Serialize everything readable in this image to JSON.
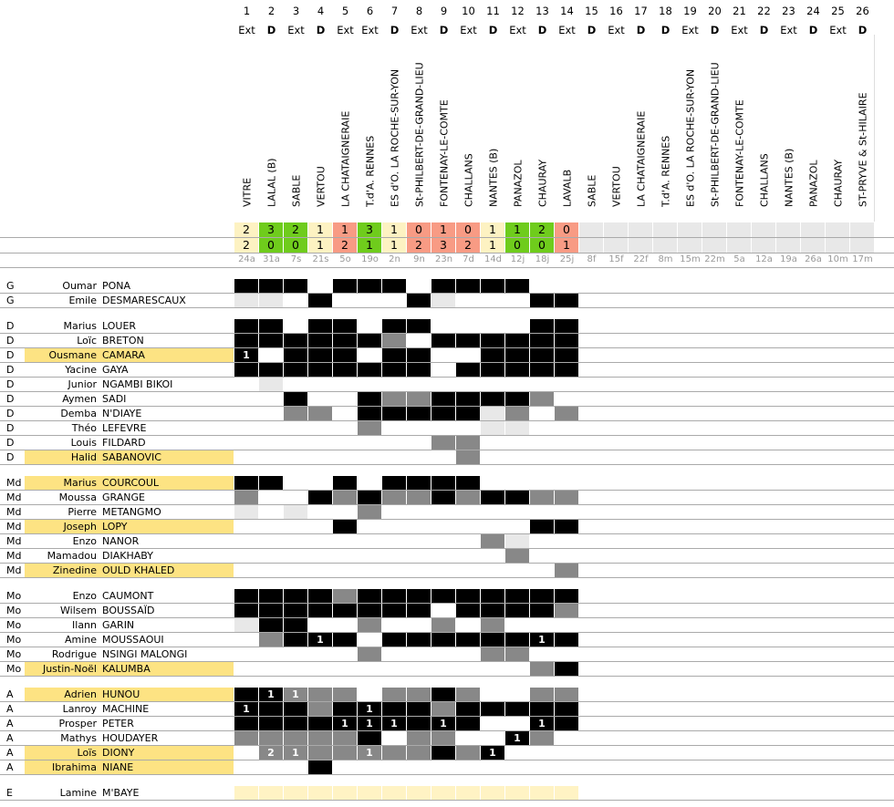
{
  "colors": {
    "win": "#6fcc1c",
    "loss": "#f89b84",
    "draw": "#fdf2c2",
    "future": "#e8e8e8",
    "started": "#000000",
    "sub": "#888888",
    "bench": "#e8e8e8",
    "highlight": "#fde383",
    "extra": "#fff3c4"
  },
  "matches": [
    {
      "num": "1",
      "type": "Ext",
      "team": "VITRE",
      "s1": "2",
      "s2": "2",
      "date": "24a",
      "res": "draw"
    },
    {
      "num": "2",
      "type": "D",
      "team": "LALAL (B)",
      "s1": "3",
      "s2": "0",
      "date": "31a",
      "res": "win"
    },
    {
      "num": "3",
      "type": "Ext",
      "team": "SABLE",
      "s1": "2",
      "s2": "0",
      "date": "7s",
      "res": "win"
    },
    {
      "num": "4",
      "type": "D",
      "team": "VERTOU",
      "s1": "1",
      "s2": "1",
      "date": "21s",
      "res": "draw"
    },
    {
      "num": "5",
      "type": "Ext",
      "team": "LA CHATAIGNERAIE",
      "s1": "1",
      "s2": "2",
      "date": "5o",
      "res": "loss"
    },
    {
      "num": "6",
      "type": "Ext",
      "team": "T.d'A. RENNES",
      "s1": "3",
      "s2": "1",
      "date": "19o",
      "res": "win"
    },
    {
      "num": "7",
      "type": "D",
      "team": "ES d'O. LA ROCHE-SUR-YON",
      "s1": "1",
      "s2": "1",
      "date": "2n",
      "res": "draw"
    },
    {
      "num": "8",
      "type": "Ext",
      "team": "St-PHILBERT-DE-GRAND-LIEU",
      "s1": "0",
      "s2": "2",
      "date": "9n",
      "res": "loss"
    },
    {
      "num": "9",
      "type": "D",
      "team": "FONTENAY-LE-COMTE",
      "s1": "1",
      "s2": "3",
      "date": "23n",
      "res": "loss"
    },
    {
      "num": "10",
      "type": "Ext",
      "team": "CHALLANS",
      "s1": "0",
      "s2": "2",
      "date": "7d",
      "res": "loss"
    },
    {
      "num": "11",
      "type": "D",
      "team": "NANTES (B)",
      "s1": "1",
      "s2": "1",
      "date": "14d",
      "res": "draw"
    },
    {
      "num": "12",
      "type": "Ext",
      "team": "PANAZOL",
      "s1": "1",
      "s2": "0",
      "date": "12j",
      "res": "win"
    },
    {
      "num": "13",
      "type": "D",
      "team": "CHAURAY",
      "s1": "2",
      "s2": "0",
      "date": "18j",
      "res": "win"
    },
    {
      "num": "14",
      "type": "Ext",
      "team": "LAVALB",
      "s1": "0",
      "s2": "1",
      "date": "25j",
      "res": "loss"
    },
    {
      "num": "15",
      "type": "D",
      "team": "SABLE",
      "s1": "",
      "s2": "",
      "date": "8f",
      "res": "future"
    },
    {
      "num": "16",
      "type": "Ext",
      "team": "VERTOU",
      "s1": "",
      "s2": "",
      "date": "15f",
      "res": "future"
    },
    {
      "num": "17",
      "type": "D",
      "team": "LA CHATAIGNERAIE",
      "s1": "",
      "s2": "",
      "date": "22f",
      "res": "future"
    },
    {
      "num": "18",
      "type": "D",
      "team": "T.d'A. RENNES",
      "s1": "",
      "s2": "",
      "date": "8m",
      "res": "future"
    },
    {
      "num": "19",
      "type": "Ext",
      "team": "ES d'O. LA ROCHE-SUR-YON",
      "s1": "",
      "s2": "",
      "date": "15m",
      "res": "future"
    },
    {
      "num": "20",
      "type": "D",
      "team": "St-PHILBERT-DE-GRAND-LIEU",
      "s1": "",
      "s2": "",
      "date": "22m",
      "res": "future"
    },
    {
      "num": "21",
      "type": "Ext",
      "team": "FONTENAY-LE-COMTE",
      "s1": "",
      "s2": "",
      "date": "5a",
      "res": "future"
    },
    {
      "num": "22",
      "type": "D",
      "team": "CHALLANS",
      "s1": "",
      "s2": "",
      "date": "12a",
      "res": "future"
    },
    {
      "num": "23",
      "type": "Ext",
      "team": "NANTES (B)",
      "s1": "",
      "s2": "",
      "date": "19a",
      "res": "future"
    },
    {
      "num": "24",
      "type": "D",
      "team": "PANAZOL",
      "s1": "",
      "s2": "",
      "date": "26a",
      "res": "future"
    },
    {
      "num": "25",
      "type": "Ext",
      "team": "CHAURAY",
      "s1": "",
      "s2": "",
      "date": "10m",
      "res": "future"
    },
    {
      "num": "26",
      "type": "D",
      "team": "ST-PRYVE & St-HILAIRE",
      "s1": "",
      "s2": "",
      "date": "17m",
      "res": "future"
    }
  ],
  "groups": [
    {
      "players": [
        {
          "pos": "G",
          "first": "Oumar",
          "last": "PONA",
          "hl": false,
          "cells": [
            "B",
            "B",
            "B",
            "",
            "B",
            "B",
            "B",
            "",
            "B",
            "B",
            "B",
            "B",
            "",
            ""
          ]
        },
        {
          "pos": "G",
          "first": "Emile",
          "last": "DESMARESCAUX",
          "hl": false,
          "cells": [
            "L",
            "L",
            "",
            "B",
            "",
            "",
            "",
            "B",
            "L",
            "",
            "",
            "",
            "B",
            "B"
          ]
        }
      ]
    },
    {
      "players": [
        {
          "pos": "D",
          "first": "Marius",
          "last": "LOUER",
          "hl": false,
          "cells": [
            "B",
            "B",
            "",
            "B",
            "B",
            "",
            "B",
            "B",
            "",
            "",
            "",
            "",
            "B",
            "B"
          ]
        },
        {
          "pos": "D",
          "first": "Loïc",
          "last": "BRETON",
          "hl": false,
          "cells": [
            "B",
            "B",
            "B",
            "B",
            "B",
            "B",
            "G",
            "",
            "B",
            "B",
            "B",
            "B",
            "B",
            "B"
          ]
        },
        {
          "pos": "D",
          "first": "Ousmane",
          "last": "CAMARA",
          "hl": true,
          "cells": [
            "B1",
            "",
            "B",
            "B",
            "B",
            "",
            "B",
            "B",
            "",
            "",
            "B",
            "B",
            "B",
            "B"
          ]
        },
        {
          "pos": "D",
          "first": "Yacine",
          "last": "GAYA",
          "hl": false,
          "cells": [
            "B",
            "B",
            "B",
            "B",
            "B",
            "B",
            "B",
            "B",
            "",
            "B",
            "B",
            "B",
            "B",
            "B"
          ]
        },
        {
          "pos": "D",
          "first": "Junior",
          "last": "NGAMBI BIKOI",
          "hl": false,
          "cells": [
            "",
            "L",
            "",
            "",
            "",
            "",
            "",
            "",
            "",
            "",
            "",
            "",
            "",
            ""
          ]
        },
        {
          "pos": "D",
          "first": "Aymen",
          "last": "SADI",
          "hl": false,
          "cells": [
            "",
            "",
            "B",
            "",
            "",
            "B",
            "G",
            "G",
            "B",
            "B",
            "B",
            "B",
            "G",
            ""
          ]
        },
        {
          "pos": "D",
          "first": "Demba",
          "last": "N'DIAYE",
          "hl": false,
          "cells": [
            "",
            "",
            "G",
            "G",
            "",
            "B",
            "B",
            "B",
            "B",
            "B",
            "L",
            "G",
            "",
            "G"
          ]
        },
        {
          "pos": "D",
          "first": "Théo",
          "last": "LEFEVRE",
          "hl": false,
          "cells": [
            "",
            "",
            "",
            "",
            "",
            "G",
            "",
            "",
            "",
            "",
            "L",
            "L",
            "",
            ""
          ]
        },
        {
          "pos": "D",
          "first": "Louis",
          "last": "FILDARD",
          "hl": false,
          "cells": [
            "",
            "",
            "",
            "",
            "",
            "",
            "",
            "",
            "G",
            "G",
            "",
            "",
            "",
            ""
          ]
        },
        {
          "pos": "D",
          "first": "Halid",
          "last": "SABANOVIC",
          "hl": true,
          "cells": [
            "",
            "",
            "",
            "",
            "",
            "",
            "",
            "",
            "",
            "G",
            "",
            "",
            "",
            ""
          ]
        }
      ]
    },
    {
      "players": [
        {
          "pos": "Md",
          "first": "Marius",
          "last": "COURCOUL",
          "hl": true,
          "cells": [
            "B",
            "B",
            "",
            "",
            "B",
            "",
            "B",
            "B",
            "B",
            "B",
            "",
            "",
            "",
            ""
          ]
        },
        {
          "pos": "Md",
          "first": "Moussa",
          "last": "GRANGE",
          "hl": false,
          "cells": [
            "G",
            "",
            "",
            "B",
            "G",
            "B",
            "G",
            "G",
            "B",
            "G",
            "B",
            "B",
            "G",
            "G"
          ]
        },
        {
          "pos": "Md",
          "first": "Pierre",
          "last": "METANGMO",
          "hl": false,
          "cells": [
            "L",
            "",
            "L",
            "",
            "",
            "G",
            "",
            "",
            "",
            "",
            "",
            "",
            "",
            ""
          ]
        },
        {
          "pos": "Md",
          "first": "Joseph",
          "last": "LOPY",
          "hl": true,
          "cells": [
            "",
            "",
            "",
            "",
            "B",
            "",
            "",
            "",
            "",
            "",
            "",
            "",
            "B",
            "B"
          ]
        },
        {
          "pos": "Md",
          "first": "Enzo",
          "last": "NANOR",
          "hl": false,
          "cells": [
            "",
            "",
            "",
            "",
            "",
            "",
            "",
            "",
            "",
            "",
            "G",
            "L",
            "",
            ""
          ]
        },
        {
          "pos": "Md",
          "first": "Mamadou",
          "last": "DIAKHABY",
          "hl": false,
          "cells": [
            "",
            "",
            "",
            "",
            "",
            "",
            "",
            "",
            "",
            "",
            "",
            "G",
            "",
            ""
          ]
        },
        {
          "pos": "Md",
          "first": "Zinedine",
          "last": "OULD KHALED",
          "hl": true,
          "cells": [
            "",
            "",
            "",
            "",
            "",
            "",
            "",
            "",
            "",
            "",
            "",
            "",
            "",
            "G"
          ]
        }
      ]
    },
    {
      "players": [
        {
          "pos": "Mo",
          "first": "Enzo",
          "last": "CAUMONT",
          "hl": false,
          "cells": [
            "B",
            "B",
            "B",
            "B",
            "G",
            "B",
            "B",
            "B",
            "B",
            "B",
            "B",
            "B",
            "B",
            "B"
          ]
        },
        {
          "pos": "Mo",
          "first": "Wilsem",
          "last": "BOUSSAÏD",
          "hl": false,
          "cells": [
            "B",
            "B",
            "B",
            "B",
            "B",
            "B",
            "B",
            "B",
            "",
            "B",
            "B",
            "B",
            "B",
            "G"
          ]
        },
        {
          "pos": "Mo",
          "first": "Ilann",
          "last": "GARIN",
          "hl": false,
          "cells": [
            "L",
            "B",
            "B",
            "",
            "",
            "G",
            "",
            "",
            "G",
            "",
            "G",
            "",
            "",
            ""
          ]
        },
        {
          "pos": "Mo",
          "first": "Amine",
          "last": "MOUSSAOUI",
          "hl": false,
          "cells": [
            "",
            "G",
            "B",
            "B1",
            "B",
            "",
            "B",
            "B",
            "B",
            "B",
            "B",
            "B",
            "B1",
            "B"
          ]
        },
        {
          "pos": "Mo",
          "first": "Rodrigue",
          "last": "NSINGI MALONGI",
          "hl": false,
          "cells": [
            "",
            "",
            "",
            "",
            "",
            "G",
            "",
            "",
            "",
            "",
            "G",
            "G",
            "",
            ""
          ]
        },
        {
          "pos": "Mo",
          "first": "Justin-Noël",
          "last": "KALUMBA",
          "hl": true,
          "cells": [
            "",
            "",
            "",
            "",
            "",
            "",
            "",
            "",
            "",
            "",
            "",
            "",
            "G",
            "B"
          ]
        }
      ]
    },
    {
      "players": [
        {
          "pos": "A",
          "first": "Adrien",
          "last": "HUNOU",
          "hl": true,
          "cells": [
            "B",
            "B1",
            "G1",
            "G",
            "G",
            "",
            "G",
            "G",
            "B",
            "G",
            "",
            "",
            "G",
            "G"
          ]
        },
        {
          "pos": "A",
          "first": "Lanroy",
          "last": "MACHINE",
          "hl": false,
          "cells": [
            "B1",
            "B",
            "B",
            "G",
            "B",
            "B1",
            "B",
            "B",
            "G",
            "B",
            "B",
            "B",
            "B",
            "B"
          ]
        },
        {
          "pos": "A",
          "first": "Prosper",
          "last": "PETER",
          "hl": false,
          "cells": [
            "B",
            "B",
            "B",
            "B",
            "B1",
            "B1",
            "B1",
            "B",
            "B1",
            "B",
            "",
            "",
            "B1",
            "B"
          ]
        },
        {
          "pos": "A",
          "first": "Mathys",
          "last": "HOUDAYER",
          "hl": false,
          "cells": [
            "G",
            "G",
            "G",
            "G",
            "G",
            "B",
            "",
            "G",
            "G",
            "",
            "",
            "B1",
            "G",
            ""
          ]
        },
        {
          "pos": "A",
          "first": "Loïs",
          "last": "DIONY",
          "hl": true,
          "cells": [
            "",
            "G2",
            "G1",
            "G",
            "G",
            "G1",
            "G",
            "G",
            "B",
            "G",
            "B1",
            "",
            "",
            ""
          ]
        },
        {
          "pos": "A",
          "first": "Ibrahima",
          "last": "NIANE",
          "hl": true,
          "cells": [
            "",
            "",
            "",
            "B",
            "",
            "",
            "",
            "",
            "",
            "",
            "",
            "",
            "",
            ""
          ]
        }
      ]
    },
    {
      "players": [
        {
          "pos": "E",
          "first": "Lamine",
          "last": "M'BAYE",
          "hl": false,
          "cells": [
            "X",
            "X",
            "X",
            "X",
            "X",
            "X",
            "X",
            "X",
            "X",
            "X",
            "X",
            "X",
            "X",
            "X"
          ]
        }
      ]
    }
  ]
}
